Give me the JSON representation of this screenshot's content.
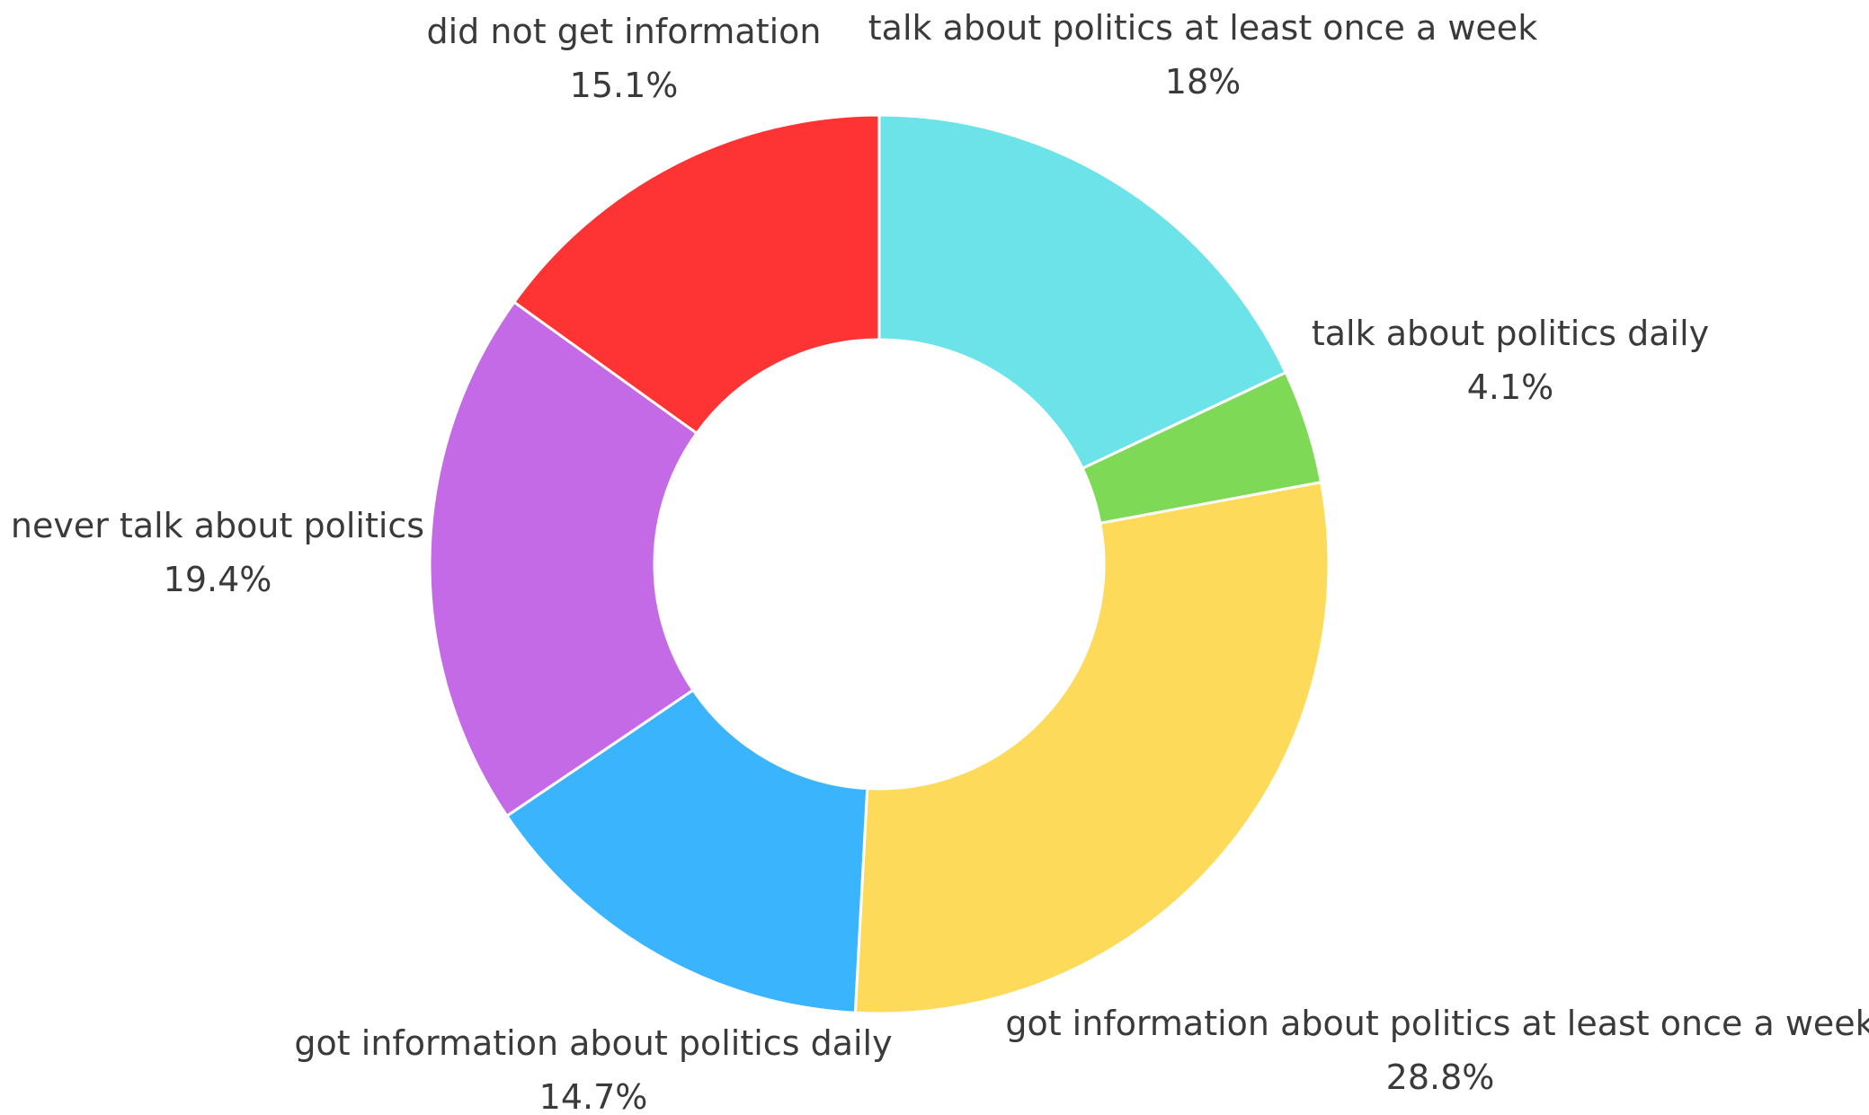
{
  "chart_data": {
    "type": "pie",
    "hole": true,
    "legend": "none",
    "slices": [
      {
        "label": "talk about politics at least once a week",
        "value": 18,
        "display": "18%",
        "color": "#6be3e9"
      },
      {
        "label": "talk about politics daily",
        "value": 4.1,
        "display": "4.1%",
        "color": "#7ed957"
      },
      {
        "label": "got information about politics at least once a week",
        "value": 28.8,
        "display": "28.8%",
        "color": "#fdda5a"
      },
      {
        "label": "got information about politics daily",
        "value": 14.7,
        "display": "14.7%",
        "color": "#3ab4fd"
      },
      {
        "label": "never talk about politics",
        "value": 19.4,
        "display": "19.4%",
        "color": "#c56ae6"
      },
      {
        "label": "did not get information",
        "value": 15.1,
        "display": "15.1%",
        "color": "#fd3334"
      }
    ]
  }
}
